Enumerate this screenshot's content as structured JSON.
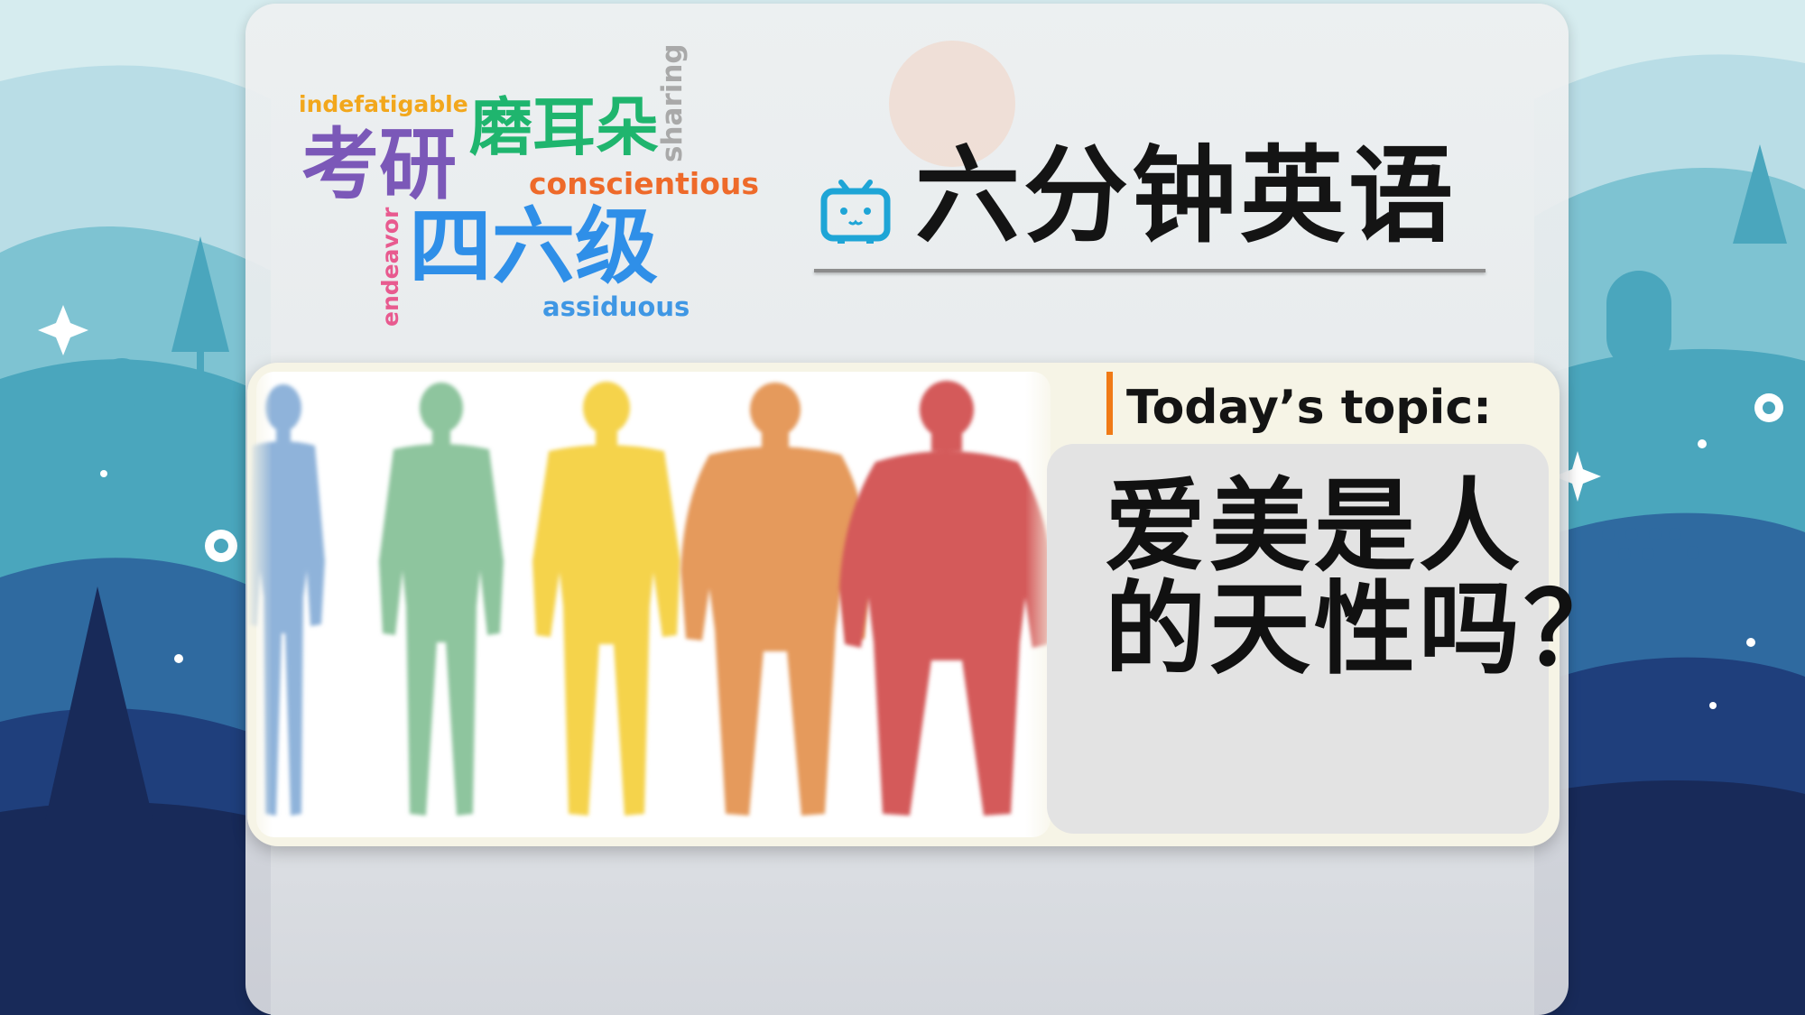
{
  "background": {
    "sky_color": "#d6ecef",
    "hill_colors": [
      "#7ec3d2",
      "#4aa6bd",
      "#2f6aa0",
      "#1f3f7c",
      "#182a59"
    ]
  },
  "word_cloud": {
    "indefatigable": "indefatigable",
    "moer": "磨耳朵",
    "kaoyan": "考研",
    "sharing": "sharing",
    "conscientious": "conscientious",
    "endeavor": "endeavor",
    "siliu": "四六级",
    "assiduous": "assiduous"
  },
  "header": {
    "logo_icon": "tv-mascot-icon",
    "logo_color": "#1ea5d6",
    "title": "六分钟英语"
  },
  "topic": {
    "label": "Today’s topic:",
    "accent_color": "#f07a16",
    "question_line1": "爱美是人",
    "question_line2": "的天性吗？"
  },
  "illustration": {
    "figure_colors": [
      "#8fb3da",
      "#8ec59e",
      "#f5d34b",
      "#e59a5b",
      "#d45a5a"
    ]
  }
}
